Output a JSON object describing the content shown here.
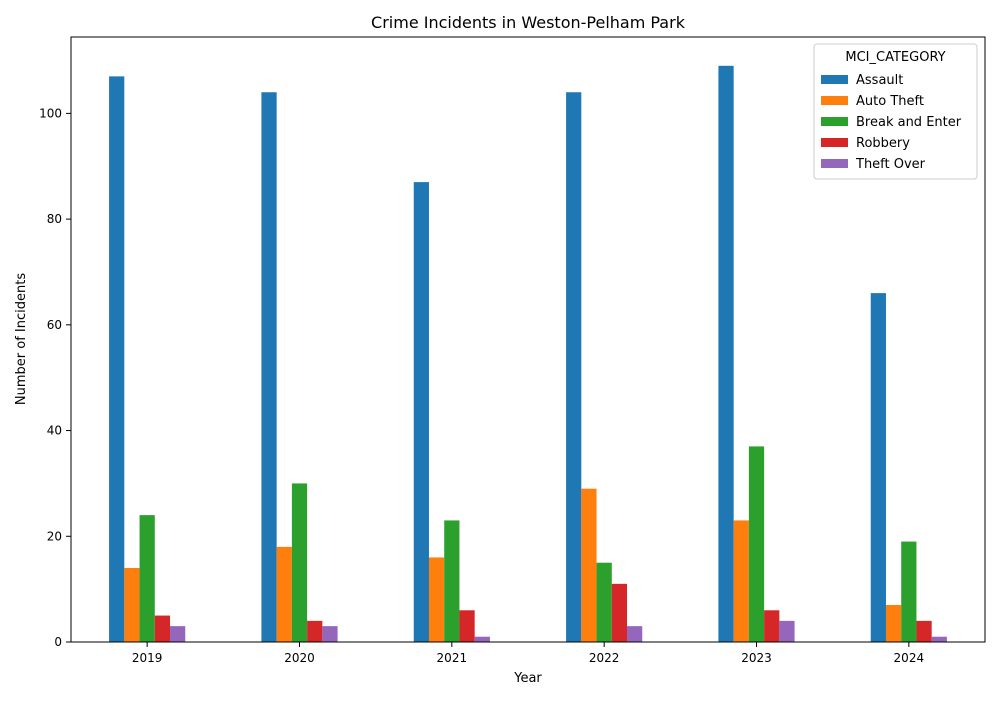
{
  "chart_data": {
    "type": "bar",
    "title": "Crime Incidents in Weston-Pelham Park",
    "xlabel": "Year",
    "ylabel": "Number of Incidents",
    "categories": [
      "2019",
      "2020",
      "2021",
      "2022",
      "2023",
      "2024"
    ],
    "ylim": [
      0,
      114.45
    ],
    "yticks": [
      0,
      20,
      40,
      60,
      80,
      100
    ],
    "grid": false,
    "legend": {
      "title": "MCI_CATEGORY",
      "placement": "top-right"
    },
    "series": [
      {
        "name": "Assault",
        "color": "#1f77b4",
        "values": [
          107,
          104,
          87,
          104,
          109,
          66
        ]
      },
      {
        "name": "Auto Theft",
        "color": "#ff7f0e",
        "values": [
          14,
          18,
          16,
          29,
          23,
          7
        ]
      },
      {
        "name": "Break and Enter",
        "color": "#2ca02c",
        "values": [
          24,
          30,
          23,
          15,
          37,
          19
        ]
      },
      {
        "name": "Robbery",
        "color": "#d62728",
        "values": [
          5,
          4,
          6,
          11,
          6,
          4
        ]
      },
      {
        "name": "Theft Over",
        "color": "#9467bd",
        "values": [
          3,
          3,
          1,
          3,
          4,
          1
        ]
      }
    ]
  }
}
